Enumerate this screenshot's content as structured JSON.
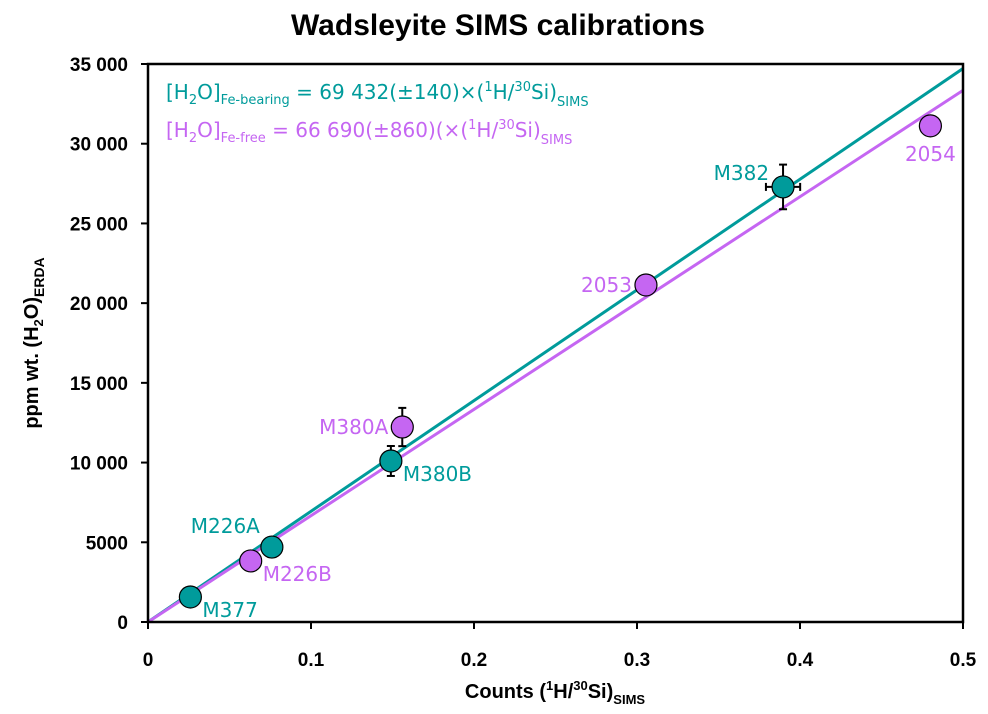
{
  "chart_data": {
    "type": "scatter",
    "title": "Wadsleyite SIMS calibrations",
    "xlabel": {
      "main": "Counts (",
      "sup1": "1",
      "mid": "H/",
      "sup2": "30",
      "end": "Si)",
      "sub": "SIMS"
    },
    "ylabel": {
      "main": "ppm wt. (H",
      "sub1": "2",
      "mid": "O)",
      "sub2": "ERDA"
    },
    "xlim": [
      0,
      0.5
    ],
    "ylim": [
      0,
      35000
    ],
    "xticks": [
      0,
      0.1,
      0.2,
      0.3,
      0.4,
      0.5
    ],
    "xtick_labels": [
      "0",
      "0.1",
      "0.2",
      "0.3",
      "0.4",
      "0.5"
    ],
    "yticks": [
      0,
      5000,
      10000,
      15000,
      20000,
      25000,
      30000,
      35000
    ],
    "ytick_labels": [
      "0",
      "5000",
      "10 000",
      "15 000",
      "20 000",
      "25 000",
      "30 000",
      "35 000"
    ],
    "grid": false,
    "series": [
      {
        "name": "Fe-bearing",
        "color": "#009B9B",
        "fit_slope": 69432,
        "fit_slope_err": 140,
        "equation": {
          "lhs": "[H",
          "lhs_sub": "2",
          "lhs2": "O]",
          "lhs_sub2": "Fe-bearing",
          "rhs": " = 69 432(±140)×(",
          "sup1": "1",
          "mid": "H/",
          "sup2": "30",
          "end": "Si)",
          "sub": "SIMS"
        },
        "points": [
          {
            "label": "M377",
            "x": 0.026,
            "y": 1570,
            "label_pos": "below-right"
          },
          {
            "label": "M226A",
            "x": 0.076,
            "y": 4700,
            "label_pos": "above-left"
          },
          {
            "label": "M380B",
            "x": 0.149,
            "y": 10100,
            "yerr": 940,
            "label_pos": "below-right"
          },
          {
            "label": "M382",
            "x": 0.3896,
            "y": 27290,
            "xerr": 0.0105,
            "yerr": 1400,
            "label_pos": "left-up"
          }
        ]
      },
      {
        "name": "Fe-free",
        "color": "#C566F2",
        "fit_slope": 66690,
        "fit_slope_err": 860,
        "equation": {
          "lhs": "[H",
          "lhs_sub": "2",
          "lhs2": "O]",
          "lhs_sub2": "Fe-free",
          "rhs": " = 66 690(±860)(×(",
          "sup1": "1",
          "mid": "H/",
          "sup2": "30",
          "end": "Si)",
          "sub": "SIMS"
        },
        "points": [
          {
            "label": "M226B",
            "x": 0.063,
            "y": 3830,
            "label_pos": "below-right"
          },
          {
            "label": "M380A",
            "x": 0.156,
            "y": 12230,
            "yerr": 1200,
            "label_pos": "left"
          },
          {
            "label": "2053",
            "x": 0.3055,
            "y": 21140,
            "label_pos": "left"
          },
          {
            "label": "2054",
            "x": 0.48,
            "y": 31120,
            "label_pos": "below"
          }
        ]
      }
    ],
    "legend": "top-left"
  }
}
